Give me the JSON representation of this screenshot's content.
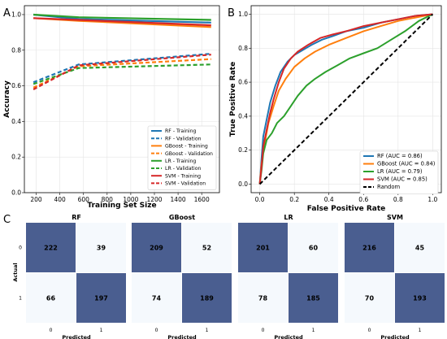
{
  "panels": {
    "a": "A",
    "b": "B",
    "c": "C"
  },
  "colors": {
    "rf": "#1f77b4",
    "gboost": "#ff7f0e",
    "lr": "#2ca02c",
    "svm": "#d62728",
    "cm_dark": "#4a5e90",
    "cm_mid": "#4a7fb8",
    "cm_light": "#f5f9fd"
  },
  "chart_data": [
    {
      "type": "line",
      "xlabel": "Training Set Size",
      "ylabel": "Accuracy",
      "xlim": [
        100,
        1750
      ],
      "ylim": [
        0,
        1.05
      ],
      "xticks": [
        200,
        400,
        600,
        800,
        1000,
        1200,
        1400,
        1600
      ],
      "yticks": [
        0.0,
        0.2,
        0.4,
        0.6,
        0.8,
        1.0
      ],
      "ytick_labels": [
        "0.0",
        "0.2",
        "0.4",
        "0.6",
        "0.8",
        "1.0"
      ],
      "grid": true,
      "legend_position": "lower-right",
      "x": [
        176,
        560,
        1680
      ],
      "series": [
        {
          "name": "RF - Training",
          "color_key": "rf",
          "dashed": false,
          "values": [
            1.0,
            0.975,
            0.955
          ]
        },
        {
          "name": "RF - Validation",
          "color_key": "rf",
          "dashed": true,
          "values": [
            0.62,
            0.72,
            0.78
          ]
        },
        {
          "name": "GBoost - Training",
          "color_key": "gboost",
          "dashed": false,
          "values": [
            0.98,
            0.965,
            0.93
          ]
        },
        {
          "name": "GBoost - Validation",
          "color_key": "gboost",
          "dashed": true,
          "values": [
            0.59,
            0.71,
            0.75
          ]
        },
        {
          "name": "LR - Training",
          "color_key": "lr",
          "dashed": false,
          "values": [
            1.0,
            0.985,
            0.97
          ]
        },
        {
          "name": "LR - Validation",
          "color_key": "lr",
          "dashed": true,
          "values": [
            0.61,
            0.7,
            0.72
          ]
        },
        {
          "name": "SVM - Training",
          "color_key": "svm",
          "dashed": false,
          "values": [
            0.98,
            0.97,
            0.94
          ]
        },
        {
          "name": "SVM - Validation",
          "color_key": "svm",
          "dashed": true,
          "values": [
            0.58,
            0.715,
            0.775
          ]
        }
      ]
    },
    {
      "type": "line",
      "xlabel": "False Positive Rate",
      "ylabel": "True Positive Rate",
      "xlim": [
        -0.05,
        1.05
      ],
      "ylim": [
        -0.05,
        1.05
      ],
      "xticks": [
        0.0,
        0.2,
        0.4,
        0.6,
        0.8,
        1.0
      ],
      "yticks": [
        0.0,
        0.2,
        0.4,
        0.6,
        0.8,
        1.0
      ],
      "xtick_labels": [
        "0.0",
        "0.2",
        "0.4",
        "0.6",
        "0.8",
        "1.0"
      ],
      "ytick_labels": [
        "0.0",
        "0.2",
        "0.4",
        "0.6",
        "0.8",
        "1.0"
      ],
      "grid": true,
      "legend_position": "lower-right",
      "series": [
        {
          "name": "RF (AUC = 0.86)",
          "color_key": "rf",
          "dashed": false,
          "points": [
            [
              0,
              0
            ],
            [
              0.01,
              0.15
            ],
            [
              0.02,
              0.28
            ],
            [
              0.04,
              0.38
            ],
            [
              0.06,
              0.48
            ],
            [
              0.09,
              0.58
            ],
            [
              0.12,
              0.66
            ],
            [
              0.16,
              0.72
            ],
            [
              0.2,
              0.76
            ],
            [
              0.25,
              0.79
            ],
            [
              0.3,
              0.82
            ],
            [
              0.36,
              0.85
            ],
            [
              0.42,
              0.87
            ],
            [
              0.5,
              0.9
            ],
            [
              0.6,
              0.92
            ],
            [
              0.7,
              0.95
            ],
            [
              0.8,
              0.97
            ],
            [
              0.9,
              0.99
            ],
            [
              1,
              1
            ]
          ]
        },
        {
          "name": "GBoost (AUC = 0.84)",
          "color_key": "gboost",
          "dashed": false,
          "points": [
            [
              0,
              0
            ],
            [
              0.01,
              0.12
            ],
            [
              0.03,
              0.25
            ],
            [
              0.05,
              0.36
            ],
            [
              0.08,
              0.46
            ],
            [
              0.11,
              0.55
            ],
            [
              0.15,
              0.62
            ],
            [
              0.2,
              0.69
            ],
            [
              0.26,
              0.74
            ],
            [
              0.32,
              0.78
            ],
            [
              0.4,
              0.82
            ],
            [
              0.5,
              0.86
            ],
            [
              0.6,
              0.9
            ],
            [
              0.7,
              0.93
            ],
            [
              0.8,
              0.96
            ],
            [
              0.9,
              0.98
            ],
            [
              1,
              1
            ]
          ]
        },
        {
          "name": "LR (AUC = 0.79)",
          "color_key": "lr",
          "dashed": false,
          "points": [
            [
              0,
              0
            ],
            [
              0.01,
              0.08
            ],
            [
              0.02,
              0.18
            ],
            [
              0.04,
              0.26
            ],
            [
              0.07,
              0.3
            ],
            [
              0.1,
              0.36
            ],
            [
              0.14,
              0.4
            ],
            [
              0.18,
              0.46
            ],
            [
              0.22,
              0.52
            ],
            [
              0.27,
              0.58
            ],
            [
              0.32,
              0.62
            ],
            [
              0.38,
              0.66
            ],
            [
              0.45,
              0.7
            ],
            [
              0.52,
              0.74
            ],
            [
              0.6,
              0.77
            ],
            [
              0.68,
              0.8
            ],
            [
              0.76,
              0.85
            ],
            [
              0.84,
              0.9
            ],
            [
              0.92,
              0.96
            ],
            [
              1,
              1
            ]
          ]
        },
        {
          "name": "SVM (AUC = 0.85)",
          "color_key": "svm",
          "dashed": false,
          "points": [
            [
              0,
              0
            ],
            [
              0.01,
              0.1
            ],
            [
              0.02,
              0.22
            ],
            [
              0.04,
              0.32
            ],
            [
              0.06,
              0.42
            ],
            [
              0.08,
              0.5
            ],
            [
              0.11,
              0.6
            ],
            [
              0.14,
              0.68
            ],
            [
              0.18,
              0.74
            ],
            [
              0.22,
              0.78
            ],
            [
              0.28,
              0.82
            ],
            [
              0.35,
              0.86
            ],
            [
              0.42,
              0.88
            ],
            [
              0.5,
              0.9
            ],
            [
              0.6,
              0.93
            ],
            [
              0.7,
              0.95
            ],
            [
              0.8,
              0.97
            ],
            [
              0.9,
              0.99
            ],
            [
              1,
              1
            ]
          ]
        },
        {
          "name": "Random",
          "color": "#000000",
          "dashed": true,
          "points": [
            [
              0,
              0
            ],
            [
              1,
              1
            ]
          ]
        }
      ]
    },
    {
      "type": "heatmap",
      "title": "RF",
      "xlabel": "Predicted",
      "ylabel": "Actual",
      "x_tick_labels": [
        "0",
        "1"
      ],
      "y_tick_labels": [
        "0",
        "1"
      ],
      "values": [
        [
          222,
          39
        ],
        [
          66,
          197
        ]
      ]
    },
    {
      "type": "heatmap",
      "title": "GBoost",
      "xlabel": "Predicted",
      "x_tick_labels": [
        "0",
        "1"
      ],
      "values": [
        [
          209,
          52
        ],
        [
          74,
          189
        ]
      ]
    },
    {
      "type": "heatmap",
      "title": "LR",
      "xlabel": "Predicted",
      "x_tick_labels": [
        "0",
        "1"
      ],
      "values": [
        [
          201,
          60
        ],
        [
          78,
          185
        ]
      ]
    },
    {
      "type": "heatmap",
      "title": "SVM",
      "xlabel": "Predicted",
      "x_tick_labels": [
        "0",
        "1"
      ],
      "values": [
        [
          216,
          45
        ],
        [
          70,
          193
        ]
      ]
    }
  ]
}
